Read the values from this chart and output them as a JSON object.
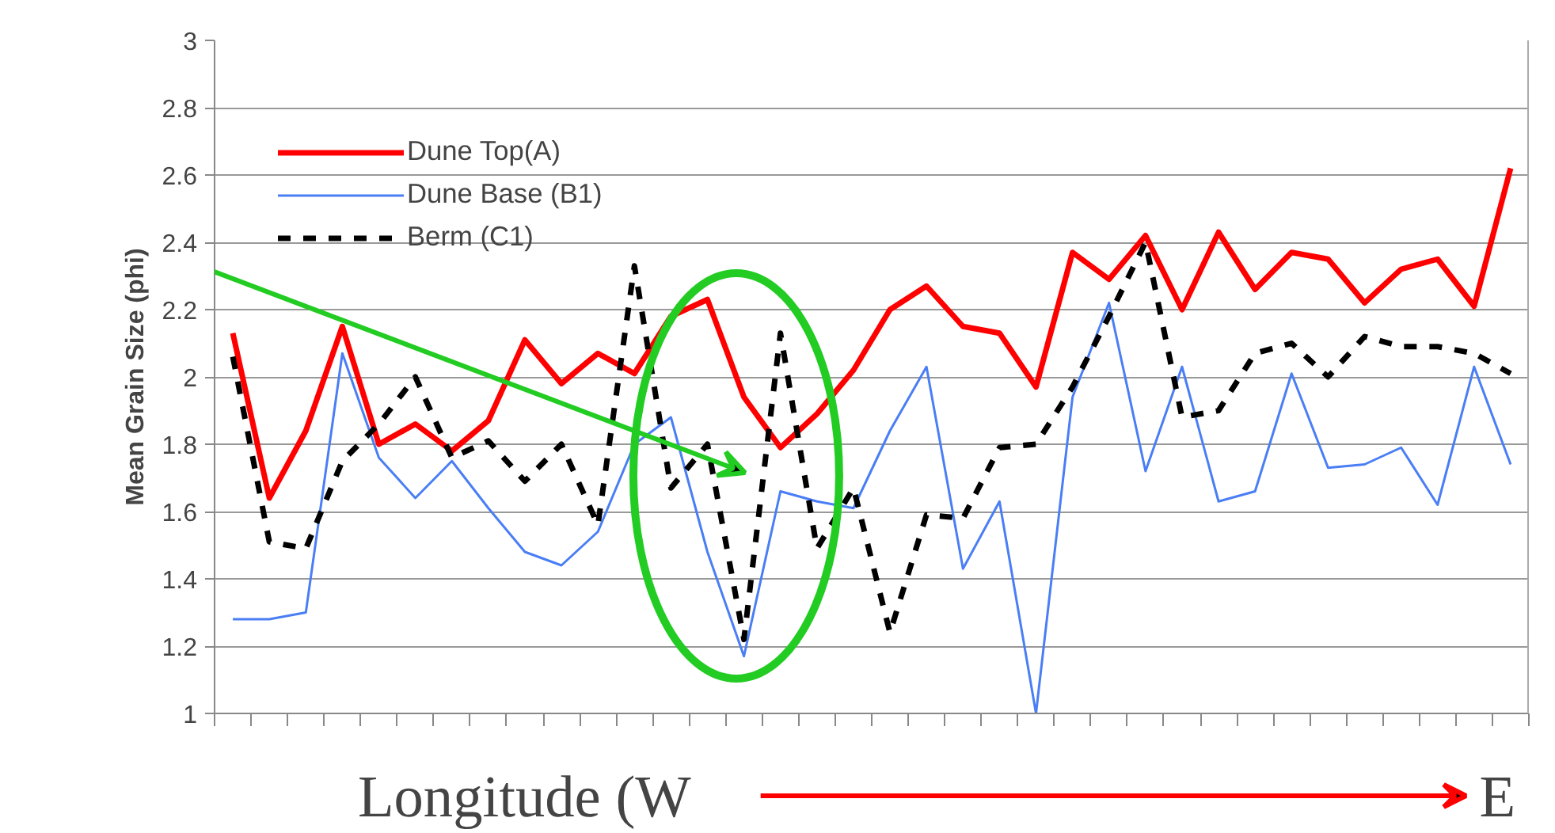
{
  "chart_data": {
    "type": "line",
    "ylabel": "Mean Grain Size (phi)",
    "xlabel": "Longitude (W",
    "annotations": [
      "E"
    ],
    "categories": [
      null,
      null,
      null,
      null,
      null,
      null,
      null,
      null,
      null,
      null,
      null,
      null,
      null,
      null,
      null,
      null,
      null,
      null,
      null,
      null,
      null,
      null,
      null,
      null,
      null,
      null,
      null,
      null,
      null,
      null,
      null,
      null,
      null,
      null,
      null,
      null
    ],
    "series": [
      {
        "name": "Dune Top(A)",
        "color": "#ff0000",
        "line_style": "solid",
        "values": [
          2.13,
          1.64,
          1.84,
          2.15,
          1.8,
          1.86,
          1.78,
          1.87,
          2.11,
          1.98,
          2.07,
          2.01,
          2.18,
          2.23,
          1.94,
          1.79,
          1.89,
          2.02,
          2.2,
          2.27,
          2.15,
          2.13,
          1.97,
          2.37,
          2.29,
          2.42,
          2.2,
          2.43,
          2.26,
          2.37,
          2.35,
          2.22,
          2.32,
          2.35,
          2.21,
          2.62
        ]
      },
      {
        "name": "Dune Base (B1)",
        "color": "#4a7ef5",
        "line_style": "solid",
        "values": [
          1.28,
          1.28,
          1.3,
          2.07,
          1.76,
          1.64,
          1.75,
          1.61,
          1.48,
          1.44,
          1.54,
          1.8,
          1.88,
          1.48,
          1.17,
          1.66,
          1.63,
          1.61,
          1.84,
          2.03,
          1.43,
          1.63,
          1.0,
          1.94,
          2.22,
          1.72,
          2.03,
          1.63,
          1.66,
          2.01,
          1.73,
          1.74,
          1.79,
          1.62,
          2.03,
          1.74
        ]
      },
      {
        "name": "Berm (C1)",
        "color": "#000000",
        "line_style": "dashed",
        "values": [
          2.06,
          1.51,
          1.49,
          1.75,
          1.86,
          2.0,
          1.76,
          1.81,
          1.69,
          1.8,
          1.56,
          2.33,
          1.67,
          1.8,
          1.22,
          2.13,
          1.49,
          1.67,
          1.24,
          1.59,
          1.58,
          1.79,
          1.8,
          1.97,
          2.18,
          2.4,
          1.88,
          1.9,
          2.07,
          2.1,
          2.0,
          2.12,
          2.09,
          2.09,
          2.07,
          2.01
        ]
      }
    ],
    "ylim": [
      1,
      3
    ],
    "yticks": [
      1,
      1.2,
      1.4,
      1.6,
      1.8,
      2,
      2.2,
      2.4,
      2.6,
      2.8,
      3
    ],
    "grid": "y",
    "legend": "top left",
    "marker": "none"
  }
}
